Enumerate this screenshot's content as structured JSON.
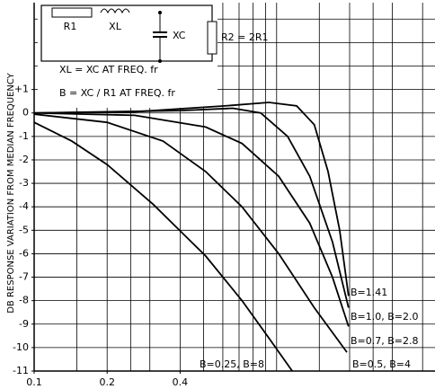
{
  "chart_data": {
    "type": "line",
    "y_label": "DB RESPONSE VARIATION FROM MEDIAN FREQUENCY",
    "log_x": true,
    "grid": true,
    "color": "#000000",
    "xlim": [
      0.1,
      4.5
    ],
    "ylim": [
      -11,
      4.7
    ],
    "xticks": [
      0.1,
      0.2,
      0.4
    ],
    "xgrid": [
      0.1,
      0.15,
      0.2,
      0.25,
      0.3,
      0.4,
      0.5,
      0.6,
      0.7,
      0.8,
      0.9,
      1,
      1.5,
      2,
      2.5,
      3,
      4
    ],
    "yticks": [
      {
        "value": 1,
        "label": "+1"
      },
      0,
      -1,
      -2,
      -3,
      -4,
      -5,
      -6,
      -7,
      -8,
      -9,
      -10,
      -11
    ],
    "ygrid": [
      4,
      3,
      2,
      1,
      0,
      -1,
      -2,
      -3,
      -4,
      -5,
      -6,
      -7,
      -8,
      -9,
      -10,
      -11
    ],
    "annotations": [
      "R1",
      "XL",
      "XC",
      "R2 = 2R1",
      "XL = XC AT FREQ. fr",
      "B = XC / R1 AT FREQ. fr"
    ],
    "series": [
      {
        "name": "B=1.41",
        "x": [
          0.1,
          0.26,
          0.61,
          0.93,
          1.21,
          1.43,
          1.63,
          1.82,
          1.98
        ],
        "values": [
          0,
          0.05,
          0.3,
          0.45,
          0.3,
          -0.5,
          -2.5,
          -5,
          -7.8
        ]
      },
      {
        "name": "B=1.0, B=2.0",
        "x": [
          0.1,
          0.4,
          0.66,
          0.86,
          1.11,
          1.37,
          1.7,
          1.98
        ],
        "values": [
          0,
          0.1,
          0.2,
          0,
          -1,
          -2.7,
          -5.5,
          -8.3
        ]
      },
      {
        "name": "B=0.7, B=2.8",
        "x": [
          0.1,
          0.26,
          0.51,
          0.72,
          1.02,
          1.37,
          1.7,
          1.98
        ],
        "values": [
          0,
          -0.1,
          -0.6,
          -1.3,
          -2.7,
          -4.7,
          -7,
          -9.1
        ]
      },
      {
        "name": "B=0.5, B=4",
        "x": [
          0.1,
          0.2,
          0.34,
          0.51,
          0.72,
          1.02,
          1.43,
          1.95
        ],
        "values": [
          -0.05,
          -0.4,
          -1.2,
          -2.5,
          -4,
          -6,
          -8.3,
          -10.2
        ]
      },
      {
        "name": "B=0.25, B=8",
        "x": [
          0.1,
          0.143,
          0.2,
          0.31,
          0.51,
          0.72,
          0.93,
          1.16
        ],
        "values": [
          -0.4,
          -1.2,
          -2.2,
          -3.9,
          -6.1,
          -8,
          -9.6,
          -11
        ]
      }
    ]
  }
}
